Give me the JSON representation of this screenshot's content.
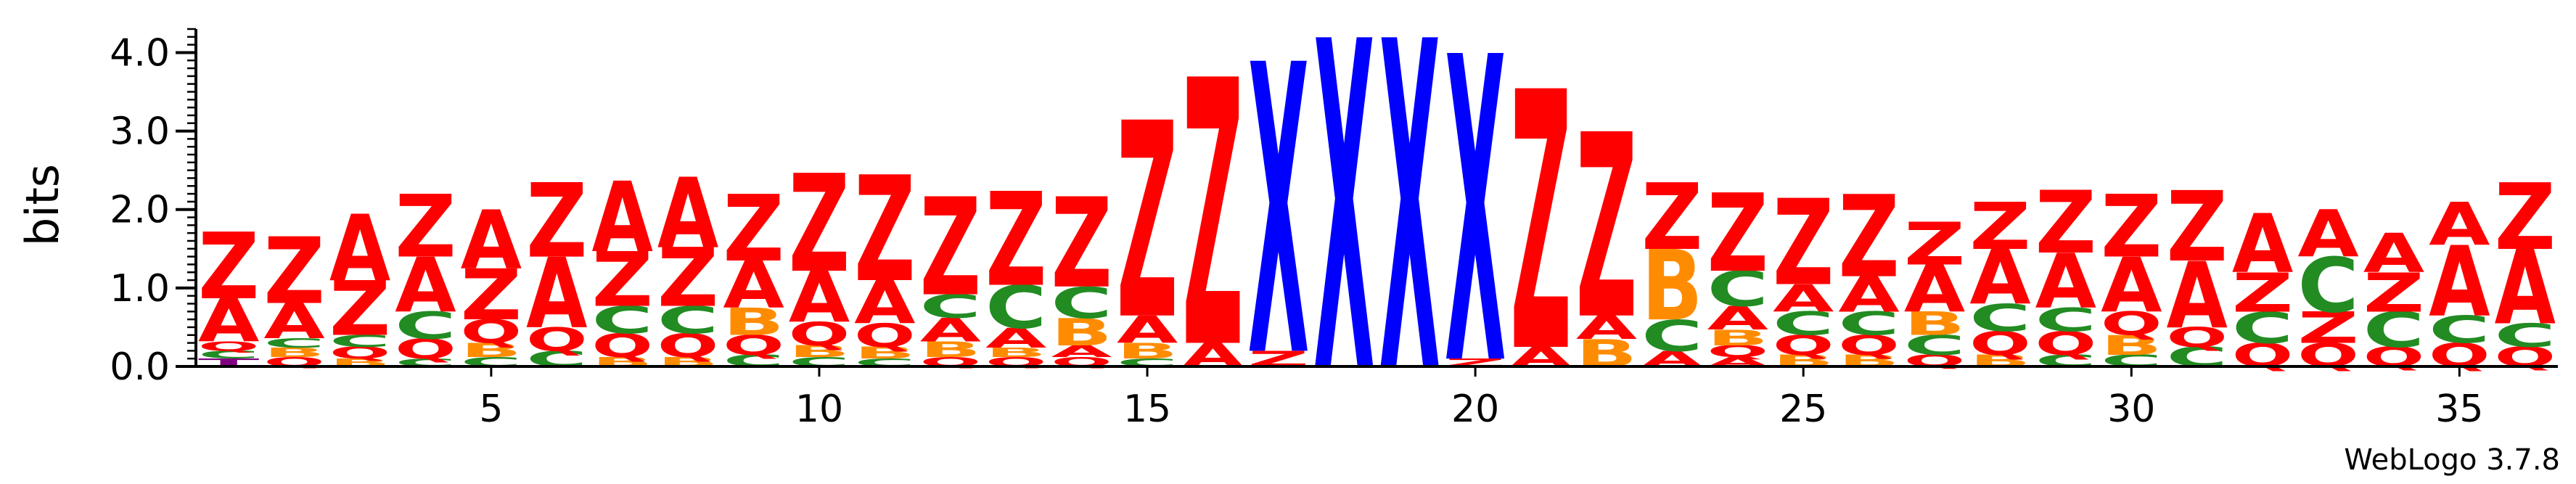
{
  "chart_data": {
    "type": "sequence-logo",
    "ylabel": "bits",
    "ylim": [
      0,
      4.3
    ],
    "yticks": [
      0.0,
      1.0,
      2.0,
      3.0,
      4.0
    ],
    "ytick_labels": [
      "0.0",
      "1.0",
      "2.0",
      "3.0",
      "4.0"
    ],
    "xticks": [
      5,
      10,
      15,
      20,
      25,
      30,
      35
    ],
    "xtick_labels": [
      "5",
      "10",
      "15",
      "20",
      "25",
      "30",
      "35"
    ],
    "colors": {
      "Z": "#ff0000",
      "A": "#ff0000",
      "X": "#0000ff",
      "C": "#228b22",
      "B": "#ff8c00",
      "Q": "#ff0000",
      "T": "#800080"
    },
    "positions": [
      {
        "pos": 1,
        "stack": [
          [
            "T",
            0.1
          ],
          [
            "C",
            0.1
          ],
          [
            "Q",
            0.12
          ],
          [
            "A",
            0.55
          ],
          [
            "Z",
            0.85
          ]
        ]
      },
      {
        "pos": 2,
        "stack": [
          [
            "Q",
            0.12
          ],
          [
            "B",
            0.12
          ],
          [
            "C",
            0.12
          ],
          [
            "A",
            0.45
          ],
          [
            "Z",
            0.85
          ]
        ]
      },
      {
        "pos": 3,
        "stack": [
          [
            "B",
            0.1
          ],
          [
            "Q",
            0.15
          ],
          [
            "C",
            0.15
          ],
          [
            "Z",
            0.7
          ],
          [
            "A",
            0.85
          ]
        ]
      },
      {
        "pos": 4,
        "stack": [
          [
            "C",
            0.1
          ],
          [
            "Q",
            0.25
          ],
          [
            "C",
            0.35
          ],
          [
            "A",
            0.7
          ],
          [
            "Z",
            0.8
          ]
        ]
      },
      {
        "pos": 5,
        "stack": [
          [
            "C",
            0.12
          ],
          [
            "B",
            0.18
          ],
          [
            "Q",
            0.3
          ],
          [
            "Z",
            0.65
          ],
          [
            "A",
            0.75
          ]
        ]
      },
      {
        "pos": 6,
        "stack": [
          [
            "C",
            0.2
          ],
          [
            "Q",
            0.3
          ],
          [
            "A",
            0.9
          ],
          [
            "Z",
            0.95
          ]
        ]
      },
      {
        "pos": 7,
        "stack": [
          [
            "B",
            0.12
          ],
          [
            "Q",
            0.3
          ],
          [
            "C",
            0.35
          ],
          [
            "Z",
            0.7
          ],
          [
            "A",
            0.9
          ]
        ]
      },
      {
        "pos": 8,
        "stack": [
          [
            "B",
            0.12
          ],
          [
            "Q",
            0.3
          ],
          [
            "C",
            0.35
          ],
          [
            "Z",
            0.75
          ],
          [
            "A",
            0.9
          ]
        ]
      },
      {
        "pos": 9,
        "stack": [
          [
            "C",
            0.15
          ],
          [
            "Q",
            0.25
          ],
          [
            "B",
            0.35
          ],
          [
            "A",
            0.6
          ],
          [
            "Z",
            0.85
          ]
        ]
      },
      {
        "pos": 10,
        "stack": [
          [
            "C",
            0.12
          ],
          [
            "B",
            0.15
          ],
          [
            "Q",
            0.3
          ],
          [
            "A",
            0.65
          ],
          [
            "Z",
            1.25
          ]
        ]
      },
      {
        "pos": 11,
        "stack": [
          [
            "C",
            0.1
          ],
          [
            "B",
            0.15
          ],
          [
            "Q",
            0.3
          ],
          [
            "A",
            0.55
          ],
          [
            "Z",
            1.35
          ]
        ]
      },
      {
        "pos": 12,
        "stack": [
          [
            "Q",
            0.12
          ],
          [
            "B",
            0.2
          ],
          [
            "A",
            0.3
          ],
          [
            "C",
            0.3
          ],
          [
            "Z",
            1.25
          ]
        ]
      },
      {
        "pos": 13,
        "stack": [
          [
            "Q",
            0.12
          ],
          [
            "B",
            0.12
          ],
          [
            "A",
            0.25
          ],
          [
            "C",
            0.55
          ],
          [
            "Z",
            1.2
          ]
        ]
      },
      {
        "pos": 14,
        "stack": [
          [
            "Q",
            0.12
          ],
          [
            "A",
            0.15
          ],
          [
            "B",
            0.35
          ],
          [
            "C",
            0.4
          ],
          [
            "Z",
            1.15
          ]
        ]
      },
      {
        "pos": 15,
        "stack": [
          [
            "C",
            0.1
          ],
          [
            "B",
            0.2
          ],
          [
            "A",
            0.35
          ],
          [
            "Z",
            2.5
          ]
        ]
      },
      {
        "pos": 16,
        "stack": [
          [
            "A",
            0.3
          ],
          [
            "Z",
            3.4
          ]
        ]
      },
      {
        "pos": 17,
        "stack": [
          [
            "Z",
            0.2
          ],
          [
            "X",
            3.7
          ]
        ]
      },
      {
        "pos": 18,
        "stack": [
          [
            "X",
            4.2
          ]
        ]
      },
      {
        "pos": 19,
        "stack": [
          [
            "X",
            4.2
          ]
        ]
      },
      {
        "pos": 20,
        "stack": [
          [
            "Z",
            0.1
          ],
          [
            "X",
            3.9
          ]
        ]
      },
      {
        "pos": 21,
        "stack": [
          [
            "A",
            0.25
          ],
          [
            "Z",
            3.3
          ]
        ]
      },
      {
        "pos": 22,
        "stack": [
          [
            "B",
            0.35
          ],
          [
            "A",
            0.3
          ],
          [
            "Z",
            2.35
          ]
        ]
      },
      {
        "pos": 23,
        "stack": [
          [
            "A",
            0.2
          ],
          [
            "C",
            0.4
          ],
          [
            "B",
            0.9
          ],
          [
            "Z",
            0.85
          ]
        ]
      },
      {
        "pos": 24,
        "stack": [
          [
            "A",
            0.12
          ],
          [
            "Q",
            0.15
          ],
          [
            "B",
            0.2
          ],
          [
            "A",
            0.3
          ],
          [
            "C",
            0.45
          ],
          [
            "Z",
            1.0
          ]
        ]
      },
      {
        "pos": 25,
        "stack": [
          [
            "B",
            0.15
          ],
          [
            "Q",
            0.25
          ],
          [
            "C",
            0.3
          ],
          [
            "A",
            0.35
          ],
          [
            "Z",
            1.1
          ]
        ]
      },
      {
        "pos": 26,
        "stack": [
          [
            "B",
            0.15
          ],
          [
            "Q",
            0.25
          ],
          [
            "C",
            0.3
          ],
          [
            "A",
            0.45
          ],
          [
            "Z",
            1.05
          ]
        ]
      },
      {
        "pos": 27,
        "stack": [
          [
            "Q",
            0.15
          ],
          [
            "C",
            0.25
          ],
          [
            "B",
            0.3
          ],
          [
            "A",
            0.6
          ],
          [
            "Z",
            0.55
          ]
        ]
      },
      {
        "pos": 28,
        "stack": [
          [
            "B",
            0.15
          ],
          [
            "Q",
            0.3
          ],
          [
            "C",
            0.35
          ],
          [
            "A",
            0.7
          ],
          [
            "Z",
            0.6
          ]
        ]
      },
      {
        "pos": 29,
        "stack": [
          [
            "C",
            0.15
          ],
          [
            "Q",
            0.3
          ],
          [
            "C",
            0.3
          ],
          [
            "A",
            0.7
          ],
          [
            "Z",
            0.8
          ]
        ]
      },
      {
        "pos": 30,
        "stack": [
          [
            "C",
            0.15
          ],
          [
            "B",
            0.25
          ],
          [
            "Q",
            0.3
          ],
          [
            "A",
            0.7
          ],
          [
            "Z",
            0.8
          ]
        ]
      },
      {
        "pos": 31,
        "stack": [
          [
            "C",
            0.25
          ],
          [
            "Q",
            0.25
          ],
          [
            "A",
            0.85
          ],
          [
            "Z",
            0.9
          ]
        ]
      },
      {
        "pos": 32,
        "stack": [
          [
            "Q",
            0.3
          ],
          [
            "C",
            0.4
          ],
          [
            "Z",
            0.5
          ],
          [
            "A",
            0.75
          ]
        ]
      },
      {
        "pos": 33,
        "stack": [
          [
            "Q",
            0.3
          ],
          [
            "Z",
            0.4
          ],
          [
            "C",
            0.7
          ],
          [
            "A",
            0.6
          ]
        ]
      },
      {
        "pos": 34,
        "stack": [
          [
            "Q",
            0.25
          ],
          [
            "C",
            0.45
          ],
          [
            "Z",
            0.5
          ],
          [
            "A",
            0.5
          ]
        ]
      },
      {
        "pos": 35,
        "stack": [
          [
            "Q",
            0.3
          ],
          [
            "C",
            0.35
          ],
          [
            "A",
            0.9
          ],
          [
            "A",
            0.55
          ]
        ]
      },
      {
        "pos": 36,
        "stack": [
          [
            "Q",
            0.25
          ],
          [
            "C",
            0.3
          ],
          [
            "A",
            0.95
          ],
          [
            "Z",
            0.85
          ]
        ]
      }
    ]
  },
  "footer": {
    "text": "WebLogo 3.7.8"
  }
}
